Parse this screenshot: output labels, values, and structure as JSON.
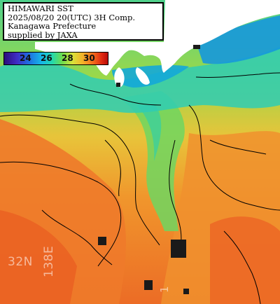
{
  "header": {
    "line1": "HIMAWARI SST",
    "line2": "2025/08/20 20(UTC) 3H Comp.",
    "line3": "Kanagawa Prefecture",
    "line4": "supplied by JAXA"
  },
  "colorbar": {
    "ticks": [
      "24",
      "26",
      "28",
      "30"
    ],
    "colors": [
      "#2b0d7a",
      "#1f6fe0",
      "#22d8b0",
      "#d8e23a",
      "#f26a1c",
      "#b80c08"
    ]
  },
  "grid_labels": {
    "latitude": "32N",
    "longitude": "138E",
    "longitude_2": "1"
  },
  "palette": {
    "land": "#ffffff",
    "cold_sea": "#1ab0d8",
    "mid_sea": "#5ed47c",
    "warm_sea": "#f0a030",
    "hot_sea": "#ec6a24"
  }
}
